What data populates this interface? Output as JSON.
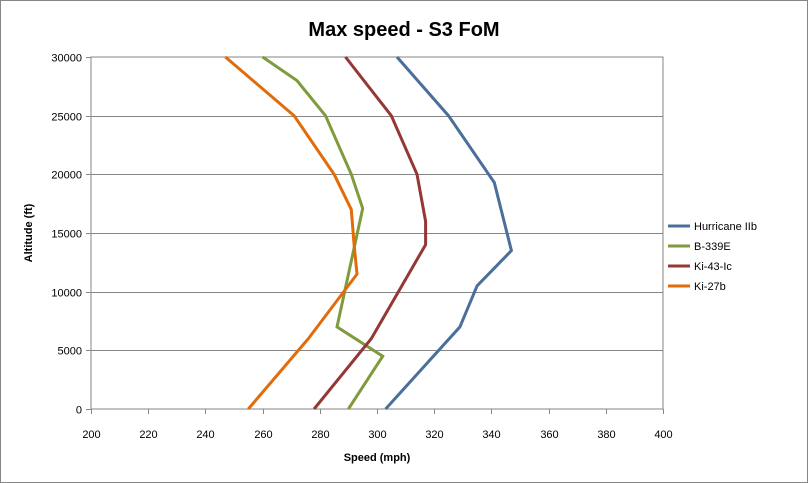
{
  "chart_data": {
    "type": "line",
    "title": "Max speed - S3 FoM",
    "xlabel": "Speed (mph)",
    "ylabel": "Altitude (ft)",
    "xlim": [
      200,
      400
    ],
    "ylim": [
      0,
      30000
    ],
    "xticks": [
      200,
      220,
      240,
      260,
      280,
      300,
      320,
      340,
      360,
      380,
      400
    ],
    "yticks": [
      0,
      5000,
      10000,
      15000,
      20000,
      25000,
      30000
    ],
    "grid": "horizontal",
    "legend_position": "right",
    "series": [
      {
        "name": "Hurricane IIb",
        "color": "#4a6f9b",
        "points": [
          [
            303,
            0
          ],
          [
            329,
            7000
          ],
          [
            335,
            10500
          ],
          [
            347,
            13500
          ],
          [
            341,
            19300
          ],
          [
            325,
            25000
          ],
          [
            307,
            30000
          ]
        ]
      },
      {
        "name": "B-339E",
        "color": "#7f9b3e",
        "points": [
          [
            290,
            0
          ],
          [
            302,
            4500
          ],
          [
            286,
            7000
          ],
          [
            295,
            17100
          ],
          [
            291,
            20000
          ],
          [
            282,
            25000
          ],
          [
            272,
            28000
          ],
          [
            260,
            30000
          ]
        ]
      },
      {
        "name": "Ki-43-Ic",
        "color": "#953735",
        "points": [
          [
            278,
            0
          ],
          [
            298,
            6000
          ],
          [
            317,
            14000
          ],
          [
            317,
            16000
          ],
          [
            314,
            20000
          ],
          [
            305,
            25000
          ],
          [
            289,
            30000
          ]
        ]
      },
      {
        "name": "Ki-27b",
        "color": "#e26b0a",
        "points": [
          [
            255,
            0
          ],
          [
            276,
            6000
          ],
          [
            293,
            11500
          ],
          [
            292,
            14000
          ],
          [
            291,
            17000
          ],
          [
            285,
            20000
          ],
          [
            271,
            25000
          ],
          [
            247,
            30000
          ]
        ]
      }
    ]
  }
}
